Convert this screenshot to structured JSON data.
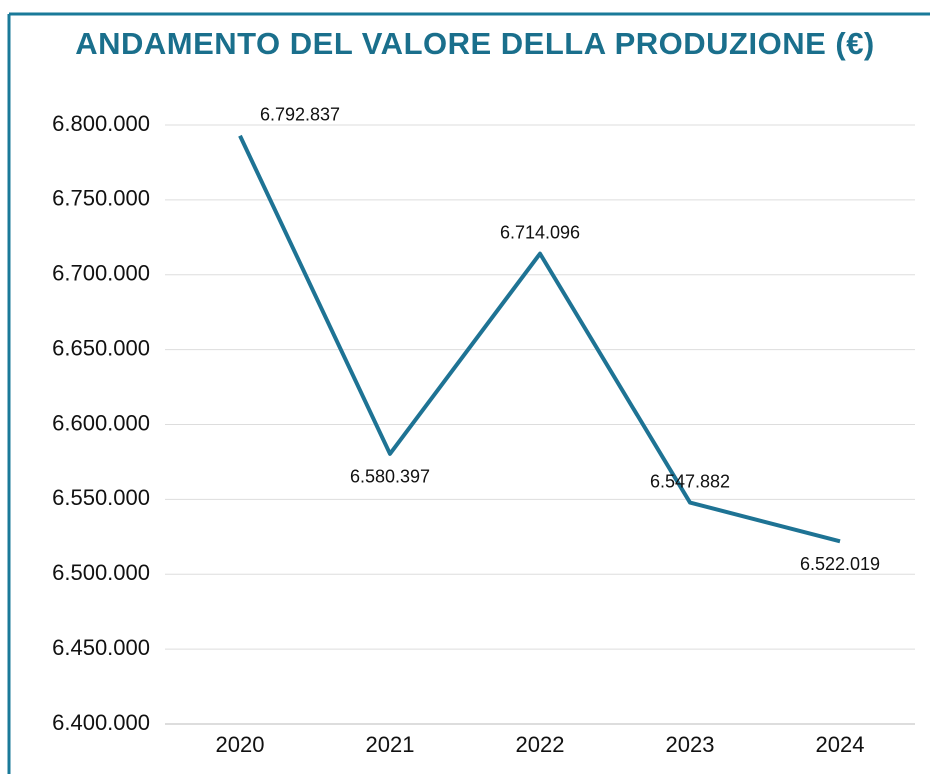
{
  "chart_data": {
    "type": "line",
    "title": "ANDAMENTO DEL VALORE DELLA PRODUZIONE (€)",
    "categories": [
      "2020",
      "2021",
      "2022",
      "2023",
      "2024"
    ],
    "series": [
      {
        "name": "Valore della produzione",
        "color": "#1e7394",
        "values": [
          6792837,
          6580397,
          6714096,
          6547882,
          6522019
        ],
        "value_labels": [
          "6.792.837",
          "6.580.397",
          "6.714.096",
          "6.547.882",
          "6.522.019"
        ]
      }
    ],
    "ylim": [
      6400000,
      6800000
    ],
    "yticks": [
      {
        "value": 6400000,
        "label": "6.400.000"
      },
      {
        "value": 6450000,
        "label": "6.450.000"
      },
      {
        "value": 6500000,
        "label": "6.500.000"
      },
      {
        "value": 6550000,
        "label": "6.550.000"
      },
      {
        "value": 6600000,
        "label": "6.600.000"
      },
      {
        "value": 6650000,
        "label": "6.650.000"
      },
      {
        "value": 6700000,
        "label": "6.700.000"
      },
      {
        "value": 6750000,
        "label": "6.750.000"
      },
      {
        "value": 6800000,
        "label": "6.800.000"
      }
    ],
    "grid": true
  }
}
